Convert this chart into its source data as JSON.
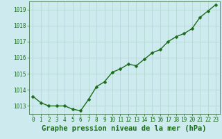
{
  "x": [
    0,
    1,
    2,
    3,
    4,
    5,
    6,
    7,
    8,
    9,
    10,
    11,
    12,
    13,
    14,
    15,
    16,
    17,
    18,
    19,
    20,
    21,
    22,
    23
  ],
  "y": [
    1013.6,
    1013.2,
    1013.0,
    1013.0,
    1013.0,
    1012.8,
    1012.7,
    1013.4,
    1014.2,
    1014.5,
    1015.1,
    1015.3,
    1015.6,
    1015.5,
    1015.9,
    1016.3,
    1016.5,
    1017.0,
    1017.3,
    1017.5,
    1017.8,
    1018.5,
    1018.9,
    1019.3
  ],
  "line_color": "#1a6b1a",
  "marker_color": "#1a6b1a",
  "bg_color": "#cdeaef",
  "grid_color": "#b0d4cc",
  "title": "Graphe pression niveau de la mer (hPa)",
  "title_color": "#1a6b1a",
  "xlim": [
    -0.5,
    23.5
  ],
  "ylim": [
    1012.5,
    1019.5
  ],
  "yticks": [
    1013,
    1014,
    1015,
    1016,
    1017,
    1018,
    1019
  ],
  "xticks": [
    0,
    1,
    2,
    3,
    4,
    5,
    6,
    7,
    8,
    9,
    10,
    11,
    12,
    13,
    14,
    15,
    16,
    17,
    18,
    19,
    20,
    21,
    22,
    23
  ],
  "title_fontsize": 7.5,
  "tick_fontsize": 5.5,
  "line_width": 1.0,
  "marker_size": 2.5
}
